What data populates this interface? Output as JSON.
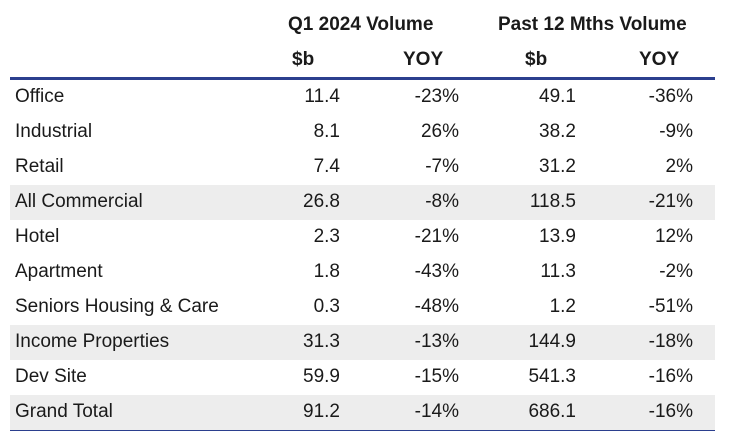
{
  "table": {
    "groups": {
      "q1": "Q1 2024 Volume",
      "p12": "Past 12 Mths Volume"
    },
    "subheaders": {
      "q1_value": "$b",
      "q1_yoy": "YOY",
      "p12_value": "$b",
      "p12_yoy": "YOY"
    },
    "rows": [
      {
        "label": "Office",
        "q1_value": "11.4",
        "q1_yoy": "-23%",
        "p12_value": "49.1",
        "p12_yoy": "-36%",
        "shaded": false
      },
      {
        "label": "Industrial",
        "q1_value": "8.1",
        "q1_yoy": "26%",
        "p12_value": "38.2",
        "p12_yoy": "-9%",
        "shaded": false
      },
      {
        "label": "Retail",
        "q1_value": "7.4",
        "q1_yoy": "-7%",
        "p12_value": "31.2",
        "p12_yoy": "2%",
        "shaded": false
      },
      {
        "label": "All Commercial",
        "q1_value": "26.8",
        "q1_yoy": "-8%",
        "p12_value": "118.5",
        "p12_yoy": "-21%",
        "shaded": true
      },
      {
        "label": "Hotel",
        "q1_value": "2.3",
        "q1_yoy": "-21%",
        "p12_value": "13.9",
        "p12_yoy": "12%",
        "shaded": false
      },
      {
        "label": "Apartment",
        "q1_value": "1.8",
        "q1_yoy": "-43%",
        "p12_value": "11.3",
        "p12_yoy": "-2%",
        "shaded": false
      },
      {
        "label": "Seniors Housing & Care",
        "q1_value": "0.3",
        "q1_yoy": "-48%",
        "p12_value": "1.2",
        "p12_yoy": "-51%",
        "shaded": false
      },
      {
        "label": "Income Properties",
        "q1_value": "31.3",
        "q1_yoy": "-13%",
        "p12_value": "144.9",
        "p12_yoy": "-18%",
        "shaded": true
      },
      {
        "label": "Dev Site",
        "q1_value": "59.9",
        "q1_yoy": "-15%",
        "p12_value": "541.3",
        "p12_yoy": "-16%",
        "shaded": false
      },
      {
        "label": "Grand Total",
        "q1_value": "91.2",
        "q1_yoy": "-14%",
        "p12_value": "686.1",
        "p12_yoy": "-16%",
        "shaded": true
      }
    ],
    "colors": {
      "rule": "#2b3f8e",
      "shade": "#ededed"
    }
  }
}
